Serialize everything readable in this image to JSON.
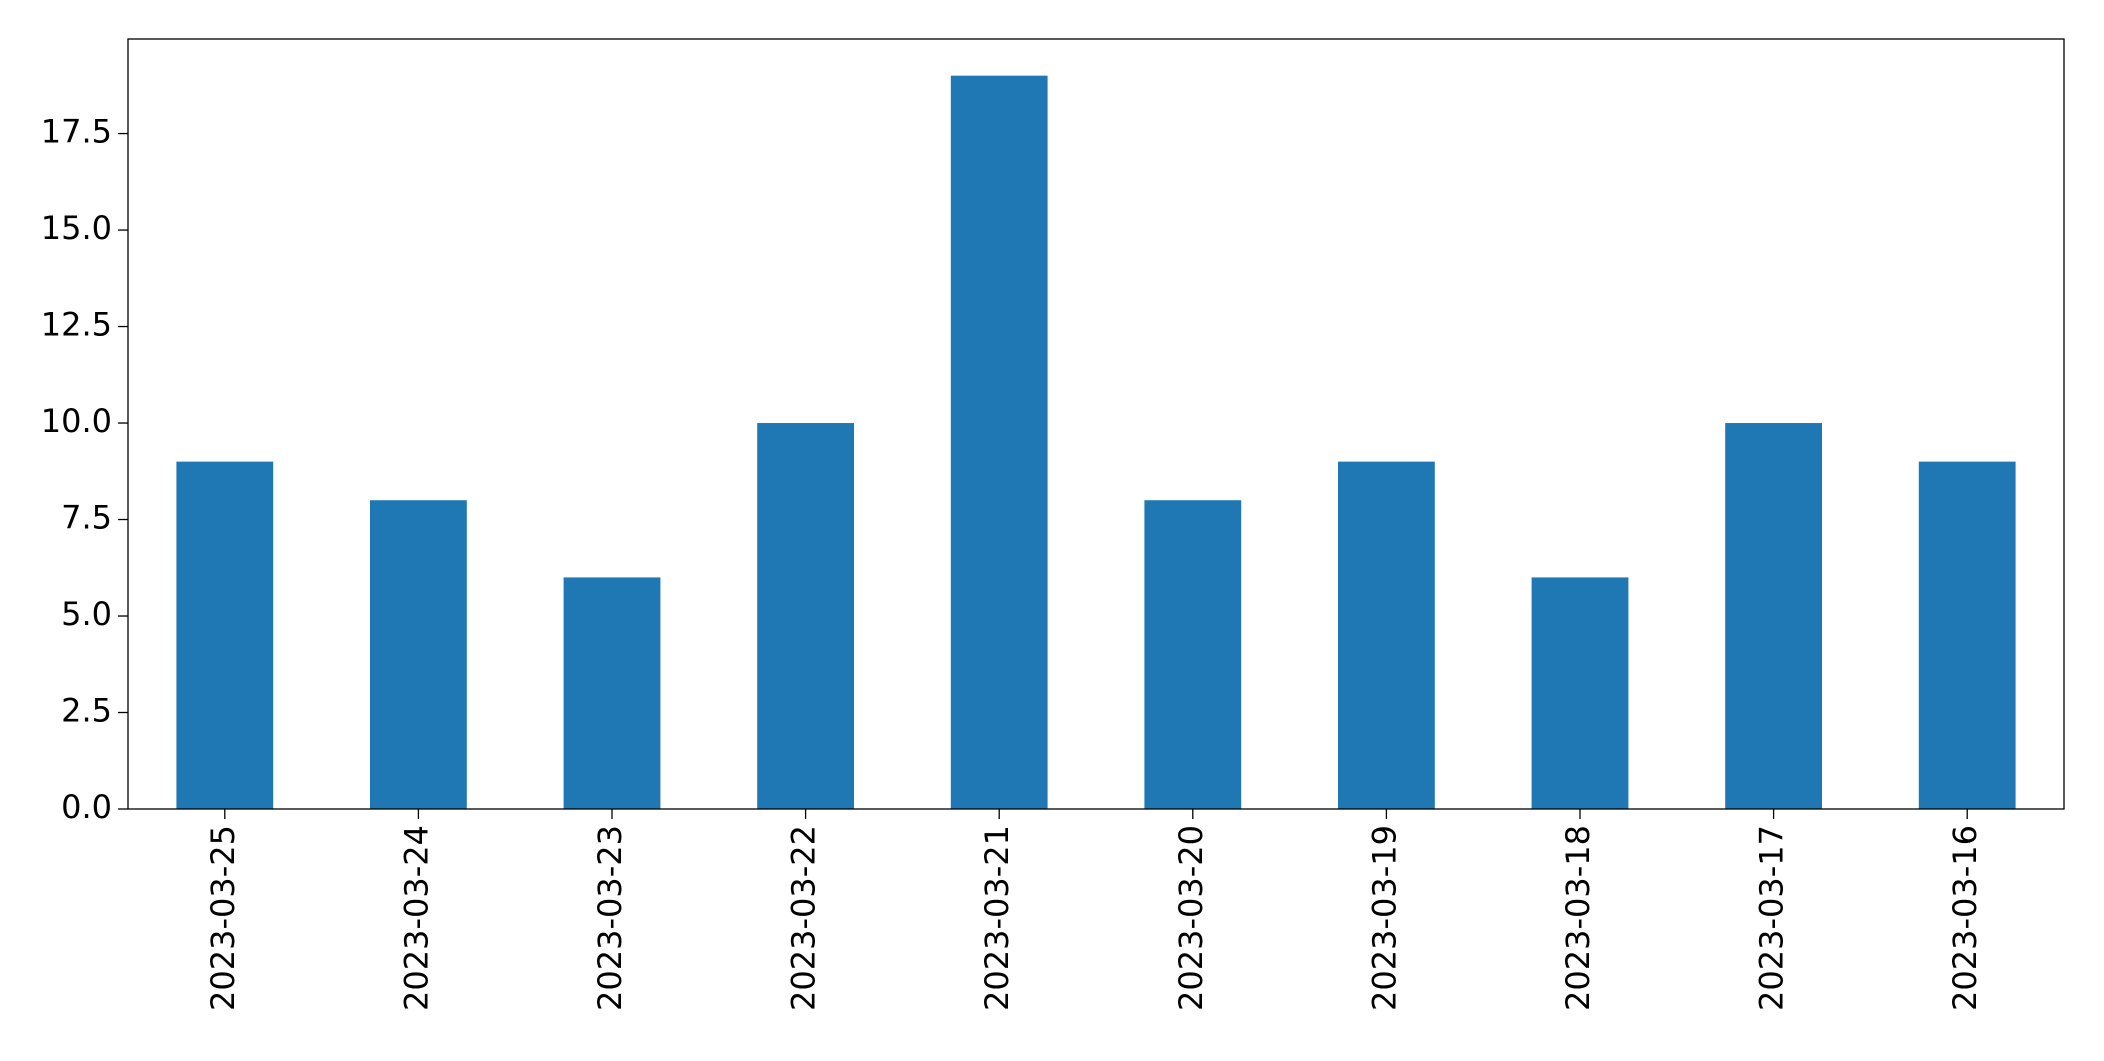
{
  "chart_data": {
    "type": "bar",
    "categories": [
      "2023-03-25",
      "2023-03-24",
      "2023-03-23",
      "2023-03-22",
      "2023-03-21",
      "2023-03-20",
      "2023-03-19",
      "2023-03-18",
      "2023-03-17",
      "2023-03-16"
    ],
    "values": [
      9,
      8,
      6,
      10,
      19,
      8,
      9,
      6,
      10,
      9
    ],
    "color": "#1f77b4",
    "ylim": [
      0,
      19.95
    ],
    "yticks": [
      {
        "value": 0,
        "label": "0.0"
      },
      2.5,
      {
        "value": 5,
        "label": "5.0"
      },
      7.5,
      {
        "value": 10,
        "label": "10.0"
      },
      12.5,
      {
        "value": 15,
        "label": "15.0"
      },
      17.5
    ],
    "grid": false
  }
}
